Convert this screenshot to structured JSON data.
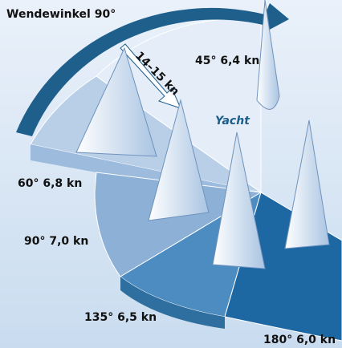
{
  "header": {
    "title": "Wendewinkel 90°"
  },
  "wind_label": "14–15 kn",
  "yacht_label": "Yacht",
  "sectors": [
    {
      "label": "45° 6,4 kn"
    },
    {
      "label": "60° 6,8 kn"
    },
    {
      "label": "90° 7,0 kn"
    },
    {
      "label": "135° 6,5 kn"
    },
    {
      "label": "180° 6,0 kn"
    }
  ]
}
